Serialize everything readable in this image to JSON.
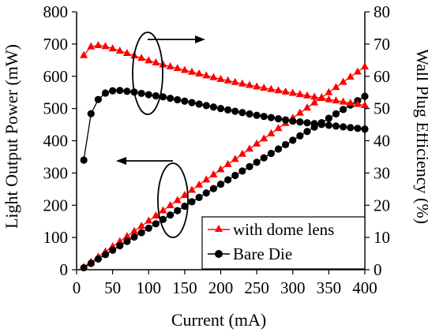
{
  "chart_data": {
    "type": "line",
    "xlabel": "Current (mA)",
    "ylabel_left": "Light Output Power (mW)",
    "ylabel_right": "Wall Plug Efficiency (%)",
    "xlim": [
      0,
      400
    ],
    "ylim_left": [
      0,
      800
    ],
    "ylim_right": [
      0,
      80
    ],
    "x_ticks": [
      "0",
      "50",
      "100",
      "150",
      "200",
      "250",
      "300",
      "350",
      "400"
    ],
    "y_left_ticks": [
      "0",
      "100",
      "200",
      "300",
      "400",
      "500",
      "600",
      "700",
      "800"
    ],
    "y_right_ticks": [
      "0",
      "10",
      "20",
      "30",
      "40",
      "50",
      "60",
      "70",
      "80"
    ],
    "grid": false,
    "legend_position": "bottom-right",
    "series": [
      {
        "name": "with dome lens",
        "axis": "left",
        "quantity": "power",
        "color": "#ff0000",
        "marker": "triangle",
        "x": [
          10,
          400
        ],
        "y": [
          8,
          630
        ],
        "count": 40
      },
      {
        "name": "Bare Die",
        "axis": "left",
        "quantity": "power",
        "color": "#000000",
        "marker": "circle",
        "x": [
          10,
          400
        ],
        "y": [
          6,
          538
        ],
        "count": 40
      },
      {
        "name": "with dome lens",
        "axis": "right",
        "quantity": "efficiency",
        "color": "#ff0000",
        "marker": "triangle",
        "x": [
          10,
          20,
          30,
          40,
          50,
          60,
          80,
          100,
          120,
          150,
          200,
          250,
          300,
          350,
          400
        ],
        "y": [
          66.5,
          69.2,
          69.6,
          69.3,
          68.6,
          67.9,
          66.4,
          64.9,
          63.6,
          61.9,
          59.1,
          56.8,
          54.8,
          52.8,
          51.0
        ]
      },
      {
        "name": "Bare Die",
        "axis": "right",
        "quantity": "efficiency",
        "color": "#000000",
        "marker": "circle",
        "x": [
          10,
          20,
          30,
          40,
          50,
          60,
          80,
          100,
          120,
          150,
          200,
          250,
          300,
          350,
          400
        ],
        "y": [
          34.0,
          48.4,
          52.8,
          54.8,
          55.5,
          55.6,
          55.1,
          54.3,
          53.6,
          52.3,
          50.0,
          47.9,
          46.1,
          44.8,
          43.6
        ]
      }
    ]
  },
  "legend": [
    {
      "label": "with dome lens",
      "marker": "triangle",
      "color": "#ff0000"
    },
    {
      "label": "Bare Die",
      "marker": "circle",
      "color": "#000000"
    }
  ]
}
